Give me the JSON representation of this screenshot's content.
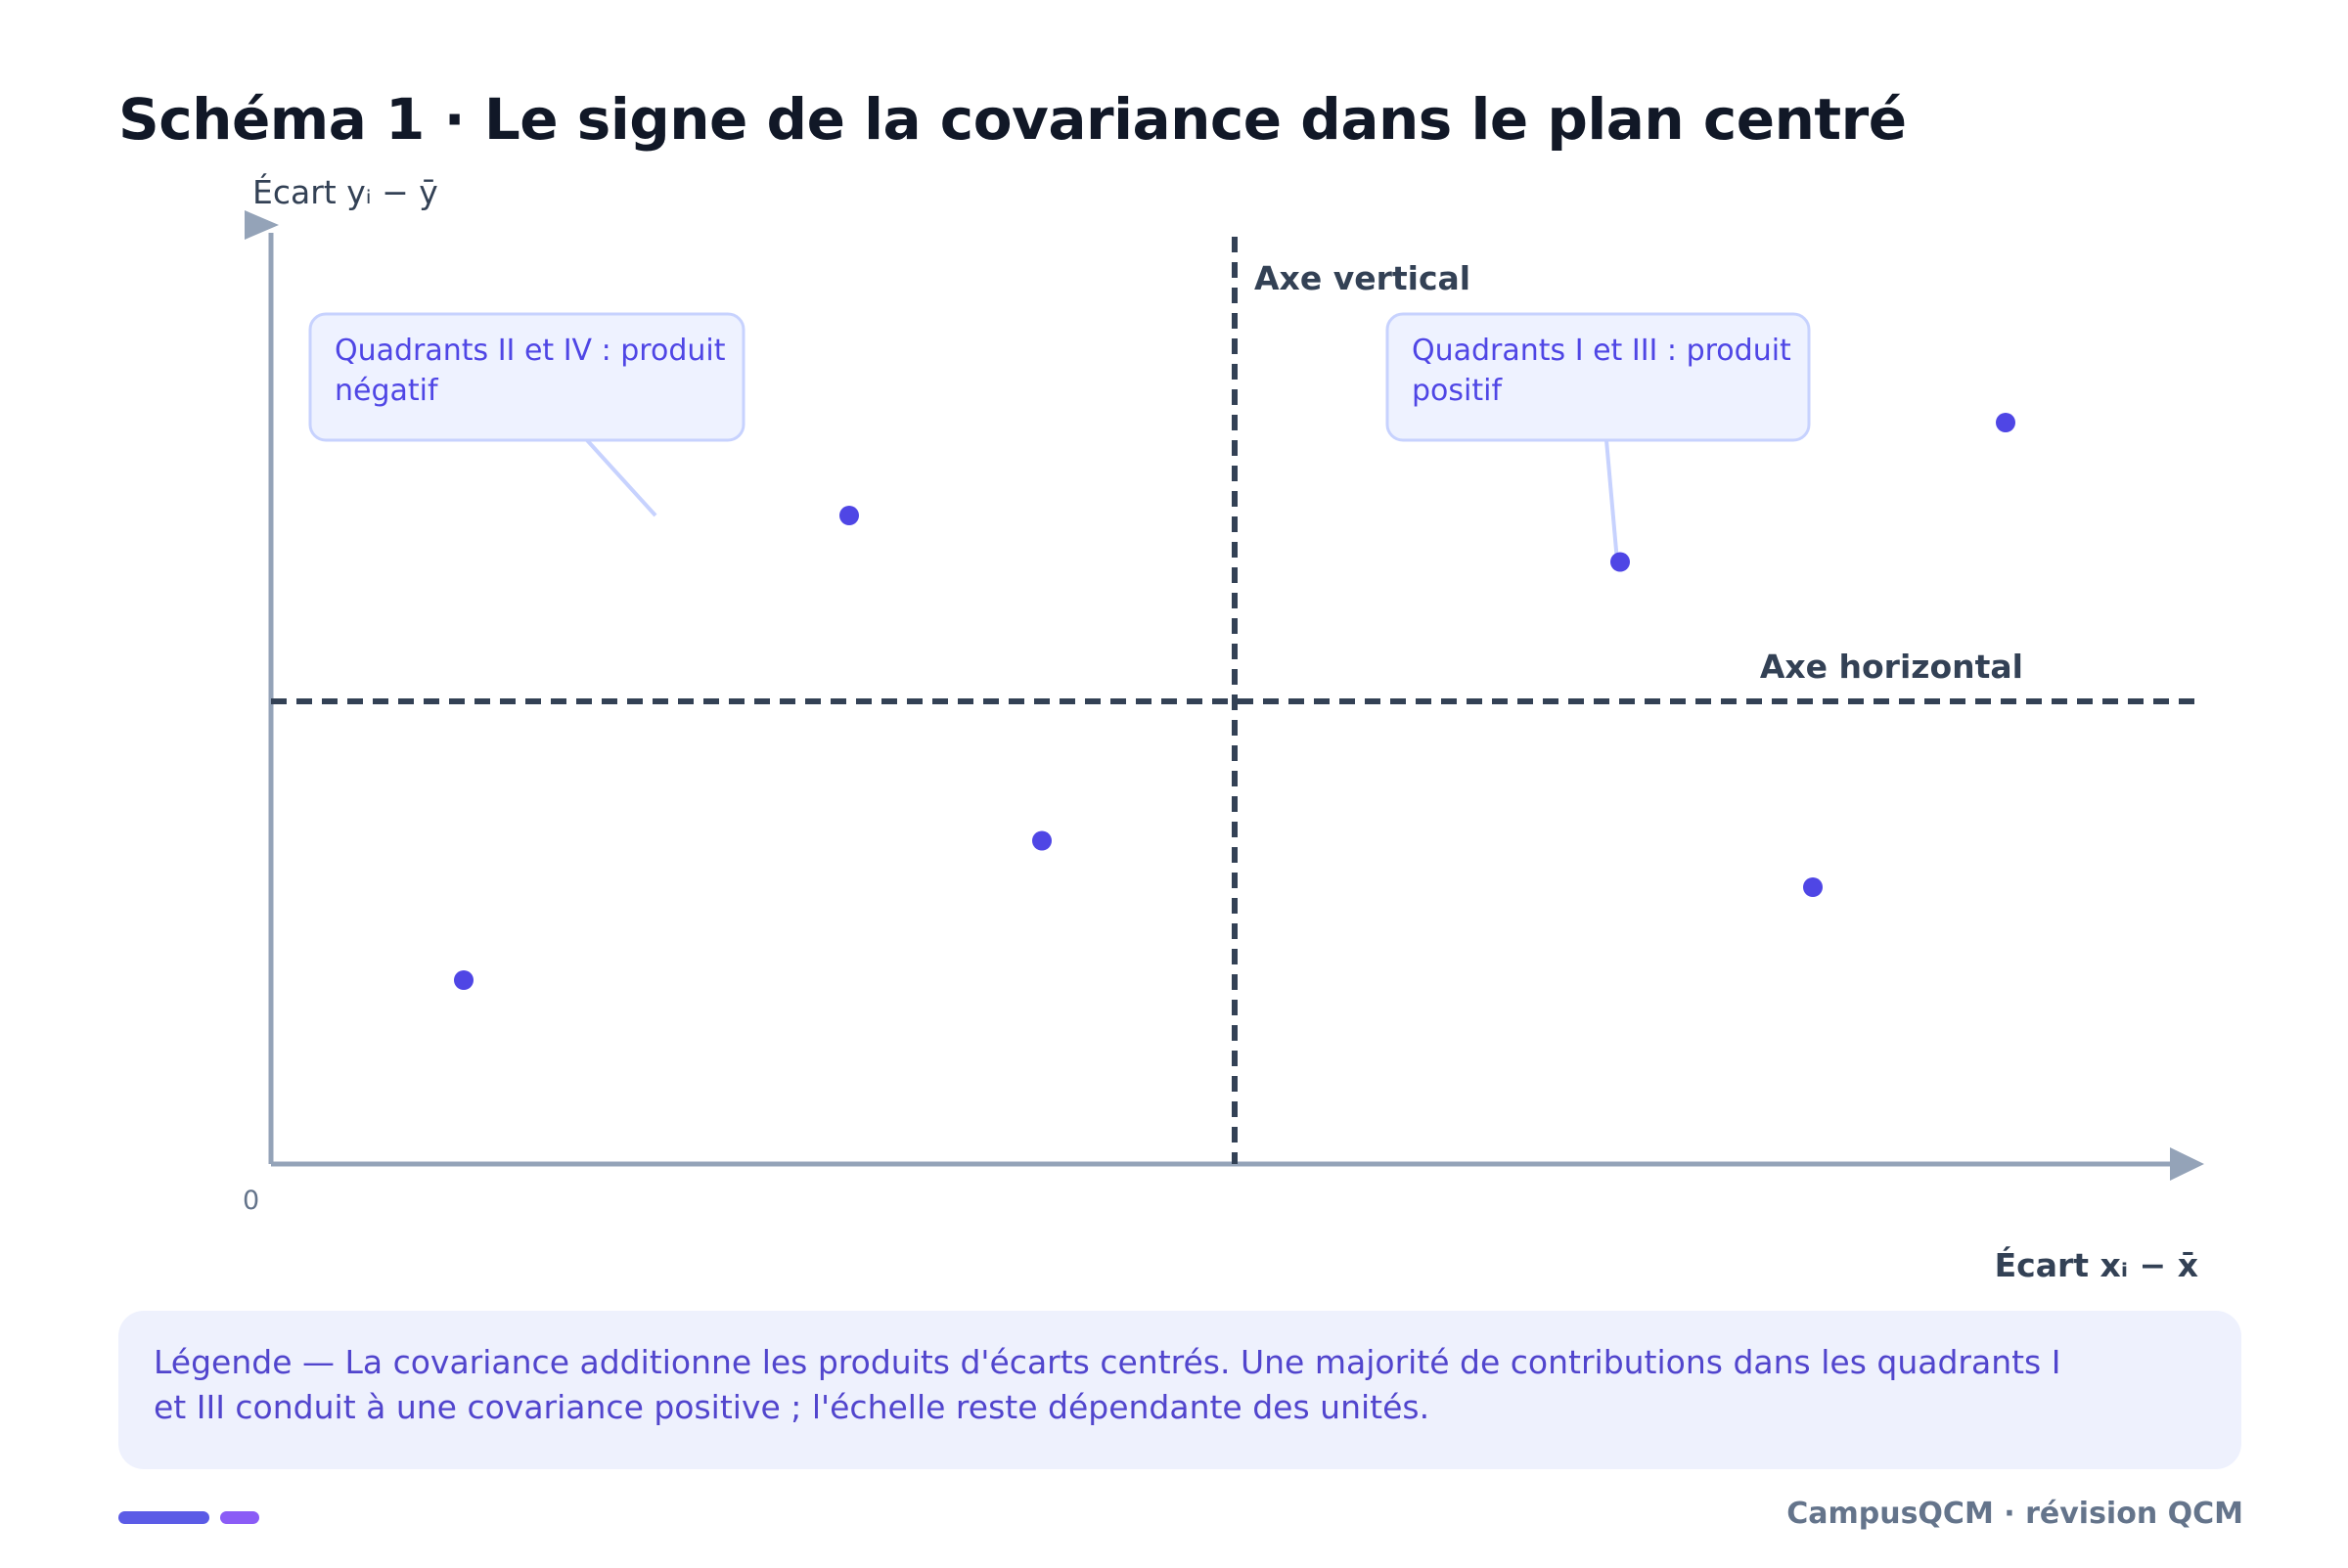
{
  "title": "Schéma 1 · Le signe de la covariance dans le plan centré",
  "axes": {
    "y_label": "Écart yᵢ − ȳ",
    "x_label": "Écart xᵢ − x̄",
    "origin_label": "0",
    "vertical_axis_label": "Axe vertical",
    "horizontal_axis_label": "Axe horizontal"
  },
  "callouts": {
    "negative": {
      "line1": "Quadrants II et IV : produit",
      "line2": "négatif"
    },
    "positive": {
      "line1": "Quadrants I et III : produit",
      "line2": "positif"
    }
  },
  "points": [
    {
      "x": -4,
      "y": 4
    },
    {
      "x": 4,
      "y": 3
    },
    {
      "x": 8,
      "y": 6
    },
    {
      "x": -2,
      "y": -3
    },
    {
      "x": -8,
      "y": -6
    },
    {
      "x": 6,
      "y": -4
    }
  ],
  "legend": "Légende — La covariance additionne les produits d'écarts centrés. Une majorité de contributions dans les quadrants I et III conduit à une covariance positive ; l'échelle reste dépendante des unités.",
  "footer": "CampusQCM · révision QCM",
  "colors": {
    "point": "#4f46e5",
    "axis": "#94a3b8",
    "dashed": "#334155",
    "callout_bg": "#eef2ff",
    "callout_border": "#c7d2fe"
  }
}
